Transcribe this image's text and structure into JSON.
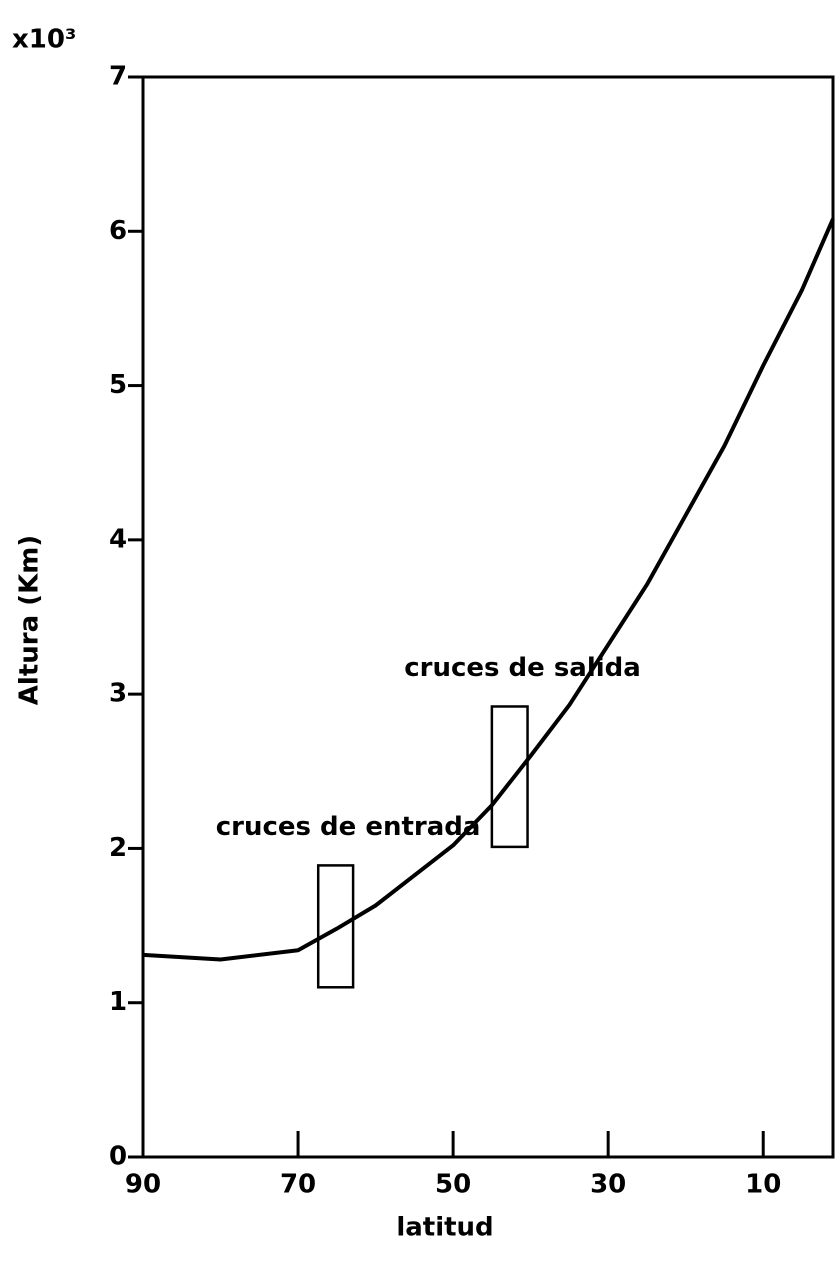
{
  "chart_data": {
    "type": "line",
    "x_label": "latitud",
    "y_label": "Altura (Km)",
    "y_multiplier": "x10³",
    "x": [
      90,
      80,
      70,
      65,
      60,
      50,
      45,
      40,
      35,
      30,
      25,
      20,
      15,
      10,
      5,
      1
    ],
    "series": [
      {
        "color": "#000000",
        "values": [
          1.31,
          1.28,
          1.34,
          1.48,
          1.63,
          2.02,
          2.28,
          2.6,
          2.93,
          3.32,
          3.71,
          4.16,
          4.61,
          5.13,
          5.62,
          6.08
        ]
      }
    ],
    "xlim": [
      90,
      1
    ],
    "xticks": [
      90,
      70,
      50,
      30,
      10
    ],
    "ylim": [
      0,
      7
    ],
    "yticks": [
      0,
      1,
      2,
      3,
      4,
      5,
      6,
      7
    ],
    "annotations": [
      {
        "label": "cruces de entrada",
        "x": [
          67.4,
          62.9
        ],
        "y": [
          1.1,
          1.89
        ]
      },
      {
        "label": "cruces de salida",
        "x": [
          45,
          40.4
        ],
        "y": [
          2.01,
          2.92
        ]
      }
    ]
  }
}
